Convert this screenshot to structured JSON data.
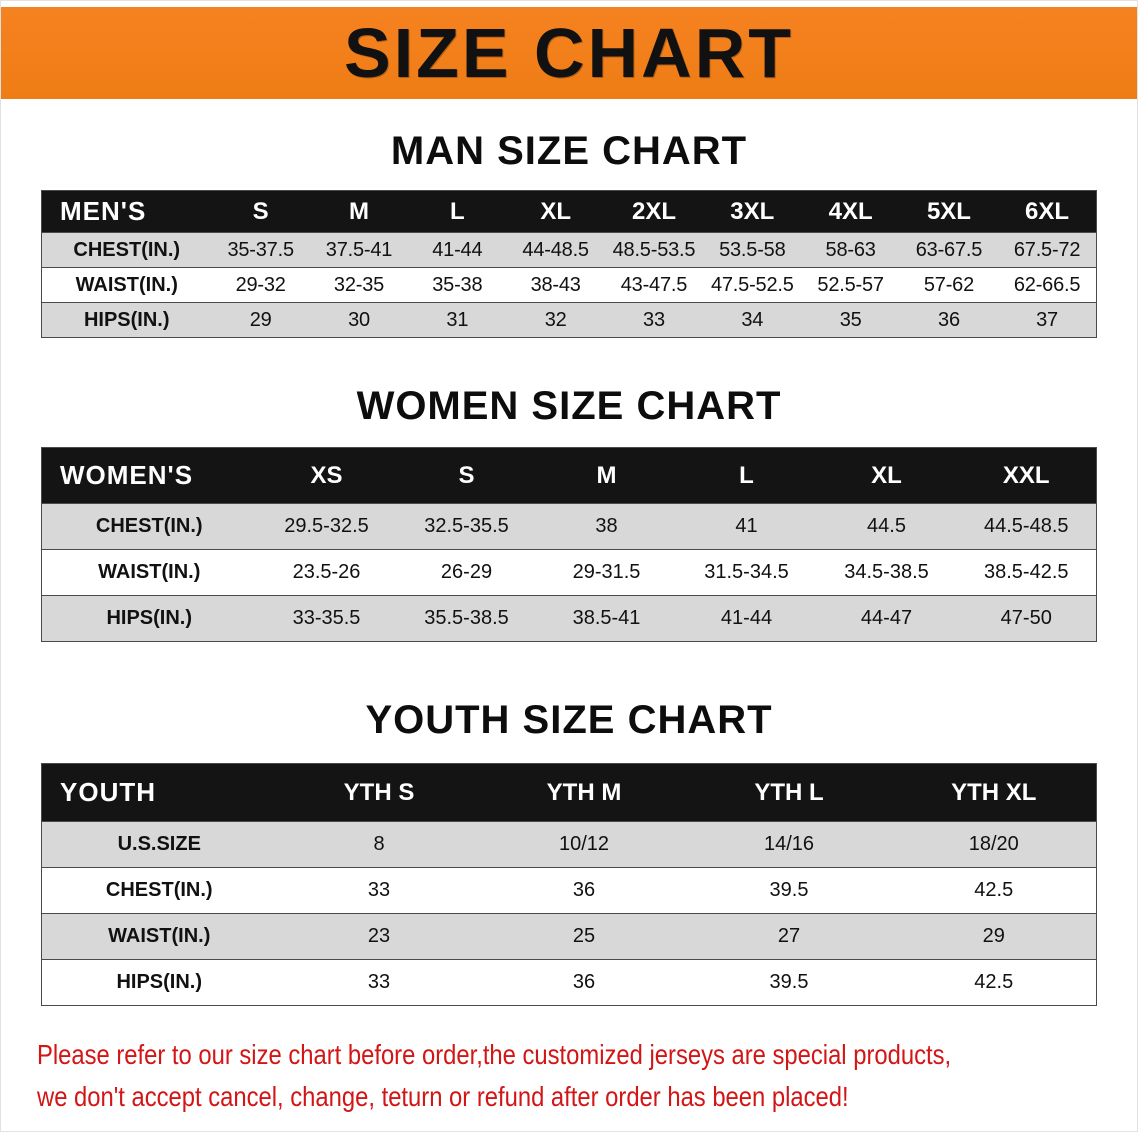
{
  "banner": {
    "title": "SIZE CHART"
  },
  "sections": [
    {
      "id": "men",
      "heading": "MAN SIZE CHART",
      "table": {
        "header": [
          "MEN'S",
          "S",
          "M",
          "L",
          "XL",
          "2XL",
          "3XL",
          "4XL",
          "5XL",
          "6XL"
        ],
        "rows": [
          {
            "label": "CHEST(IN.)",
            "values": [
              "35-37.5",
              "37.5-41",
              "41-44",
              "44-48.5",
              "48.5-53.5",
              "53.5-58",
              "58-63",
              "63-67.5",
              "67.5-72"
            ]
          },
          {
            "label": "WAIST(IN.)",
            "values": [
              "29-32",
              "32-35",
              "35-38",
              "38-43",
              "43-47.5",
              "47.5-52.5",
              "52.5-57",
              "57-62",
              "62-66.5"
            ]
          },
          {
            "label": "HIPS(IN.)",
            "values": [
              "29",
              "30",
              "31",
              "32",
              "33",
              "34",
              "35",
              "36",
              "37"
            ]
          }
        ]
      }
    },
    {
      "id": "women",
      "heading": "WOMEN SIZE CHART",
      "table": {
        "header": [
          "WOMEN'S",
          "XS",
          "S",
          "M",
          "L",
          "XL",
          "XXL"
        ],
        "rows": [
          {
            "label": "CHEST(IN.)",
            "values": [
              "29.5-32.5",
              "32.5-35.5",
              "38",
              "41",
              "44.5",
              "44.5-48.5"
            ]
          },
          {
            "label": "WAIST(IN.)",
            "values": [
              "23.5-26",
              "26-29",
              "29-31.5",
              "31.5-34.5",
              "34.5-38.5",
              "38.5-42.5"
            ]
          },
          {
            "label": "HIPS(IN.)",
            "values": [
              "33-35.5",
              "35.5-38.5",
              "38.5-41",
              "41-44",
              "44-47",
              "47-50"
            ]
          }
        ]
      }
    },
    {
      "id": "youth",
      "heading": "YOUTH SIZE CHART",
      "table": {
        "header": [
          "YOUTH",
          "YTH S",
          "YTH M",
          "YTH L",
          "YTH XL"
        ],
        "rows": [
          {
            "label": "U.S.SIZE",
            "values": [
              "8",
              "10/12",
              "14/16",
              "18/20"
            ]
          },
          {
            "label": "CHEST(IN.)",
            "values": [
              "33",
              "36",
              "39.5",
              "42.5"
            ]
          },
          {
            "label": "WAIST(IN.)",
            "values": [
              "23",
              "25",
              "27",
              "29"
            ]
          },
          {
            "label": "HIPS(IN.)",
            "values": [
              "33",
              "36",
              "39.5",
              "42.5"
            ]
          }
        ]
      }
    }
  ],
  "footer": {
    "lines": [
      "Please refer to our size chart before order,the customized jerseys are special products,",
      "we don't accept cancel, change, teturn or refund after order has been placed!"
    ]
  },
  "colors": {
    "banner_bg": "#F58220",
    "banner_text": "#111111",
    "header_bg": "#141414",
    "header_text": "#ffffff",
    "row_alt": "#d8d8d8",
    "table_border": "#4a4a4a",
    "notice_color": "#d31515"
  }
}
